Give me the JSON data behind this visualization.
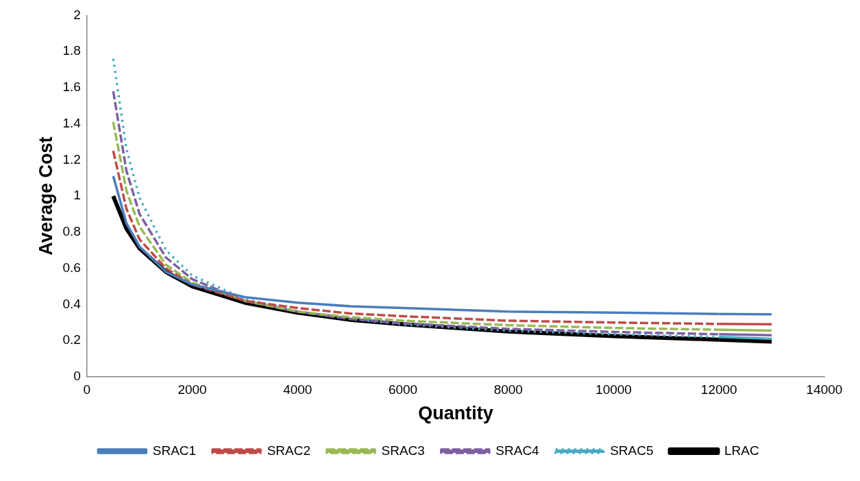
{
  "chart_data": {
    "type": "line",
    "xlabel": "Quantity",
    "ylabel": "Average Cost",
    "x": [
      500,
      750,
      1000,
      1500,
      2000,
      3000,
      4000,
      5000,
      6000,
      8000,
      10000,
      12000,
      13000
    ],
    "xlim": [
      0,
      14000
    ],
    "xticks": [
      0,
      2000,
      4000,
      6000,
      8000,
      10000,
      12000,
      14000
    ],
    "ylim": [
      0,
      2
    ],
    "yticks": [
      0,
      0.2,
      0.4,
      0.6,
      0.8,
      1,
      1.2,
      1.4,
      1.6,
      1.8,
      2
    ],
    "grid": false,
    "legend": "bottom",
    "marker": "none",
    "series": [
      {
        "name": "SRAC1",
        "color": "#4a7ebb",
        "line_style": "solid",
        "values": [
          1.11,
          0.85,
          0.72,
          0.58,
          0.51,
          0.44,
          0.41,
          0.39,
          0.38,
          0.36,
          0.355,
          0.347,
          0.345
        ]
      },
      {
        "name": "SRAC2",
        "color": "#be4b48",
        "line_style": "dashed",
        "values": [
          1.25,
          0.93,
          0.76,
          0.6,
          0.51,
          0.42,
          0.38,
          0.35,
          0.335,
          0.31,
          0.3,
          0.292,
          0.29
        ]
      },
      {
        "name": "SRAC3",
        "color": "#98b954",
        "line_style": "dashed",
        "values": [
          1.41,
          1.03,
          0.83,
          0.62,
          0.52,
          0.42,
          0.36,
          0.33,
          0.31,
          0.285,
          0.27,
          0.26,
          0.255
        ]
      },
      {
        "name": "SRAC4",
        "color": "#7d60a0",
        "line_style": "dashed",
        "values": [
          1.58,
          1.14,
          0.9,
          0.66,
          0.54,
          0.42,
          0.36,
          0.32,
          0.295,
          0.265,
          0.248,
          0.235,
          0.23
        ]
      },
      {
        "name": "SRAC5",
        "color": "#46aac5",
        "line_style": "dotted",
        "values": [
          1.76,
          1.26,
          0.99,
          0.7,
          0.56,
          0.43,
          0.36,
          0.32,
          0.29,
          0.255,
          0.235,
          0.22,
          0.21
        ]
      },
      {
        "name": "LRAC",
        "color": "#000000",
        "line_style": "solid",
        "values": [
          1.0,
          0.82,
          0.71,
          0.58,
          0.5,
          0.41,
          0.355,
          0.315,
          0.29,
          0.25,
          0.225,
          0.205,
          0.195
        ]
      }
    ]
  }
}
